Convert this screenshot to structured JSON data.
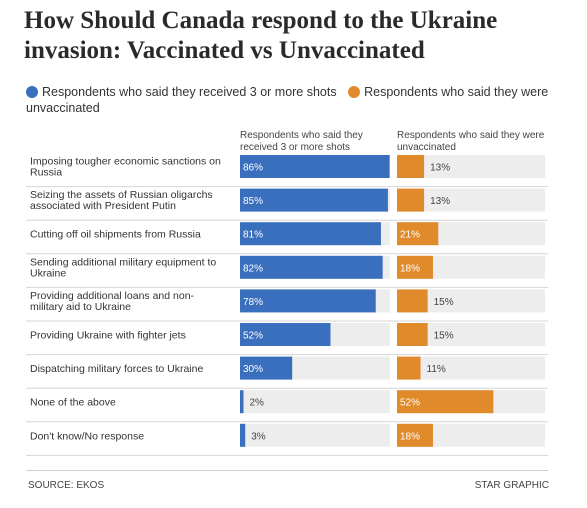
{
  "title": "How Should Canada respond to the Ukraine invasion: Vaccinated vs Unvaccinated",
  "legend": {
    "vaccinated": "Respondents who said they received 3 or more shots",
    "unvaccinated": "Respondents who said they were unvaccinated"
  },
  "column_headers": {
    "vaccinated": "Respondents who said they received 3 or more shots",
    "unvaccinated": "Respondents who said they were unvaccinated"
  },
  "colors": {
    "vaccinated": "#3a6fbe",
    "unvaccinated": "#e08a2c",
    "track": "#ededed",
    "separator": "#d6d6d6"
  },
  "footer": {
    "source": "SOURCE: EKOS",
    "credit": "STAR GRAPHIC"
  },
  "chart_data": {
    "type": "bar",
    "title": "How Should Canada respond to the Ukraine invasion: Vaccinated vs Unvaccinated",
    "categories": [
      "Imposing tougher economic sanctions on Russia",
      "Seizing the assets of Russian oligarchs associated with President Putin",
      "Cutting off oil shipments from Russia",
      "Sending additional military equipment to Ukraine",
      "Providing additional loans and non-military aid to Ukraine",
      "Providing Ukraine with fighter jets",
      "Dispatching military forces to Ukraine",
      "None of the above",
      "Don't know/No response"
    ],
    "category_lines": [
      [
        "Imposing tougher economic sanctions on",
        "Russia"
      ],
      [
        "Seizing the assets of Russian oligarchs",
        "associated with President Putin"
      ],
      [
        "Cutting off oil shipments from Russia"
      ],
      [
        "Sending additional military equipment to",
        "Ukraine"
      ],
      [
        "Providing additional loans and non-",
        "military aid to Ukraine"
      ],
      [
        "Providing Ukraine with fighter jets"
      ],
      [
        "Dispatching military forces to Ukraine"
      ],
      [
        "None of the above"
      ],
      [
        "Don't know/No response"
      ]
    ],
    "series": [
      {
        "name": "Respondents who said they received 3 or more shots",
        "values": [
          86,
          85,
          81,
          82,
          78,
          52,
          30,
          2,
          3
        ],
        "labels": [
          "86%",
          "85%",
          "81%",
          "82%",
          "78%",
          "52%",
          "30%",
          "2%",
          "3%"
        ]
      },
      {
        "name": "Respondents who said they were unvaccinated",
        "values": [
          13,
          13,
          21,
          18,
          15,
          15,
          11,
          52,
          18
        ],
        "labels": [
          "13%",
          "13%",
          "21%",
          "18%",
          "15%",
          "15%",
          "11%",
          "52%",
          "18%"
        ]
      }
    ],
    "ylim": [
      0,
      100
    ],
    "xlabel": "",
    "ylabel": "",
    "legend_position": "top"
  }
}
